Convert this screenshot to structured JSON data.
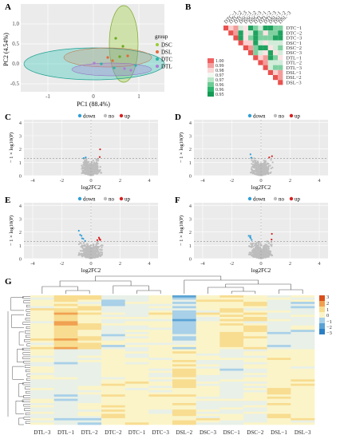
{
  "panels": {
    "A": {
      "letter": "A",
      "x_label": "PC1 (88.4%)",
      "y_label": "PC2 (4.54%)",
      "x_ticks": [
        "-1",
        "0",
        "1"
      ],
      "y_ticks": [
        "1.0",
        "0.5",
        "0.0",
        "-0.5"
      ],
      "legend_title": "group",
      "legend": [
        {
          "name": "DSC",
          "color": "#9acd32"
        },
        {
          "name": "DSL",
          "color": "#e06a3a"
        },
        {
          "name": "DTC",
          "color": "#2bb3a4"
        },
        {
          "name": "DTL",
          "color": "#b07ad8"
        }
      ]
    },
    "B": {
      "letter": "B",
      "labels": [
        "DTC−1",
        "DTC−2",
        "DTC−3",
        "DSC−1",
        "DSC−2",
        "DSC−3",
        "DTL−1",
        "DTL−2",
        "DTL−3",
        "DSL−1",
        "DSL−2",
        "DSL−3"
      ],
      "colorbar": [
        "1.00",
        "0.99",
        "0.98",
        "0.97",
        "0.97",
        "0.96",
        "0.96",
        "0.95"
      ]
    },
    "volcano": [
      {
        "letter": "C",
        "legend": [
          "down",
          "no",
          "up"
        ]
      },
      {
        "letter": "D",
        "legend": [
          "down",
          "no",
          "up"
        ]
      },
      {
        "letter": "E",
        "legend": [
          "down",
          "no",
          "up"
        ]
      },
      {
        "letter": "F",
        "legend": [
          "down",
          "no",
          "up"
        ]
      }
    ],
    "volcano_axes": {
      "x_label": "log2FC2",
      "y_label": "− 1 × log10(P)",
      "x_ticks": [
        "-4",
        "-2",
        "0",
        "2",
        "4"
      ],
      "y_ticks": [
        "0",
        "1",
        "2",
        "3",
        "4"
      ]
    },
    "G": {
      "letter": "G",
      "columns": [
        "DTL−3",
        "DTL−1",
        "DTL−2",
        "DTC−2",
        "DTC−1",
        "DTC−3",
        "DSL−2",
        "DSC−3",
        "DSC−1",
        "DSC−2",
        "DSL−1",
        "DSL−3"
      ],
      "colorbar_ticks": [
        "3",
        "2",
        "1",
        "0",
        "−1",
        "−2",
        "−3"
      ]
    }
  },
  "colors": {
    "down": "#2f9fd6",
    "no": "#bdbdbd",
    "up": "#d82020",
    "heat_high": "#d94f1c",
    "heat_mid": "#fbf4c8",
    "heat_low": "#2b7fc4",
    "corr_high": "#e9524f",
    "corr_low": "#1fa35f"
  }
}
